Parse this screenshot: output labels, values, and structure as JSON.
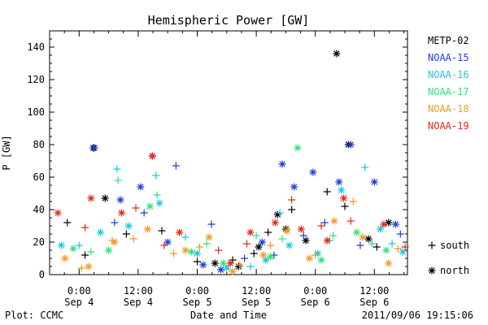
{
  "chart_data": {
    "type": "scatter",
    "title": "Hemispheric Power [GW]",
    "xlabel": "Date and Time",
    "ylabel": "P [GW]",
    "ylim": [
      0,
      150
    ],
    "yticks": [
      0,
      20,
      40,
      60,
      80,
      100,
      120,
      140
    ],
    "xlim": [
      -0.25,
      2.78
    ],
    "xticks": [
      {
        "x": 0.0,
        "time": "0:00",
        "date": "Sep 4"
      },
      {
        "x": 0.5,
        "time": "12:00",
        "date": "Sep 4"
      },
      {
        "x": 1.0,
        "time": "0:00",
        "date": "Sep 5"
      },
      {
        "x": 1.5,
        "time": "12:00",
        "date": "Sep 5"
      },
      {
        "x": 2.0,
        "time": "0:00",
        "date": "Sep 6"
      },
      {
        "x": 2.5,
        "time": "12:00",
        "date": "Sep 6"
      }
    ],
    "x_units": "days after 2011-09-04 00:00",
    "footer_left": "Plot: CCMC",
    "footer_right": "2011/09/06 19:15:06",
    "marker_legend": [
      {
        "symbol": "+",
        "label": "south"
      },
      {
        "symbol": "*",
        "label": "north"
      }
    ],
    "series": [
      {
        "name": "METP-02",
        "color": "#000000",
        "north": [
          [
            0.12,
            78
          ],
          [
            0.22,
            47
          ],
          [
            0.62,
            73
          ],
          [
            1.15,
            7
          ],
          [
            1.35,
            5
          ],
          [
            1.52,
            17
          ],
          [
            1.68,
            37
          ],
          [
            1.75,
            28
          ],
          [
            1.92,
            21
          ],
          [
            2.18,
            136
          ],
          [
            2.28,
            80
          ],
          [
            2.45,
            22
          ],
          [
            2.62,
            32
          ]
        ],
        "south": [
          [
            -0.1,
            32
          ],
          [
            0.05,
            12
          ],
          [
            0.4,
            25
          ],
          [
            0.7,
            27
          ],
          [
            1.0,
            8
          ],
          [
            1.3,
            9
          ],
          [
            1.48,
            13
          ],
          [
            1.6,
            26
          ],
          [
            1.8,
            40
          ],
          [
            2.1,
            51
          ],
          [
            2.25,
            42
          ],
          [
            2.52,
            17
          ]
        ]
      },
      {
        "name": "NOAA-15",
        "color": "#1f3fd1",
        "north": [
          [
            0.13,
            78
          ],
          [
            0.35,
            46
          ],
          [
            0.52,
            54
          ],
          [
            0.75,
            20
          ],
          [
            1.05,
            6
          ],
          [
            1.2,
            3
          ],
          [
            1.55,
            20
          ],
          [
            1.72,
            68
          ],
          [
            1.82,
            54
          ],
          [
            1.98,
            63
          ],
          [
            2.2,
            57
          ],
          [
            2.3,
            80
          ],
          [
            2.5,
            57
          ],
          [
            2.68,
            31
          ]
        ],
        "south": [
          [
            0.3,
            32
          ],
          [
            0.55,
            38
          ],
          [
            0.82,
            67
          ],
          [
            1.12,
            31
          ],
          [
            1.4,
            10
          ],
          [
            1.65,
            12
          ],
          [
            1.9,
            24
          ],
          [
            2.08,
            32
          ],
          [
            2.38,
            18
          ],
          [
            2.72,
            25
          ]
        ]
      },
      {
        "name": "NOAA-16",
        "color": "#1cc7e0",
        "north": [
          [
            -0.15,
            18
          ],
          [
            0.18,
            26
          ],
          [
            0.42,
            30
          ],
          [
            0.68,
            44
          ],
          [
            1.0,
            13
          ],
          [
            1.25,
            4
          ],
          [
            1.58,
            9
          ],
          [
            1.78,
            18
          ],
          [
            2.02,
            13
          ],
          [
            2.22,
            52
          ],
          [
            2.55,
            28
          ],
          [
            2.74,
            14
          ]
        ],
        "south": [
          [
            0.0,
            18
          ],
          [
            0.32,
            65
          ],
          [
            0.65,
            61
          ],
          [
            0.9,
            23
          ],
          [
            1.45,
            5
          ],
          [
            1.7,
            38
          ],
          [
            2.12,
            21
          ],
          [
            2.42,
            66
          ],
          [
            2.65,
            19
          ]
        ]
      },
      {
        "name": "NOAA-17",
        "color": "#33e07a",
        "north": [
          [
            -0.05,
            16
          ],
          [
            0.25,
            15
          ],
          [
            0.6,
            42
          ],
          [
            0.95,
            14
          ],
          [
            1.22,
            7
          ],
          [
            1.62,
            11
          ],
          [
            1.85,
            78
          ],
          [
            2.05,
            9
          ],
          [
            2.35,
            26
          ],
          [
            2.6,
            15
          ]
        ],
        "south": [
          [
            0.1,
            14
          ],
          [
            0.33,
            58
          ],
          [
            0.66,
            49
          ],
          [
            1.08,
            19
          ],
          [
            1.5,
            24
          ],
          [
            1.72,
            22
          ],
          [
            2.15,
            24
          ],
          [
            2.48,
            19
          ]
        ]
      },
      {
        "name": "NOAA-18",
        "color": "#f29a22",
        "north": [
          [
            -0.12,
            10
          ],
          [
            0.08,
            5
          ],
          [
            0.3,
            20
          ],
          [
            0.58,
            28
          ],
          [
            0.9,
            15
          ],
          [
            1.1,
            23
          ],
          [
            1.3,
            2
          ],
          [
            1.56,
            12
          ],
          [
            1.76,
            27
          ],
          [
            1.95,
            10
          ],
          [
            2.16,
            33
          ],
          [
            2.4,
            23
          ],
          [
            2.62,
            7
          ]
        ],
        "south": [
          [
            0.02,
            4
          ],
          [
            0.28,
            21
          ],
          [
            0.46,
            22
          ],
          [
            0.8,
            13
          ],
          [
            1.02,
            17
          ],
          [
            1.36,
            6
          ],
          [
            1.62,
            18
          ],
          [
            2.0,
            12
          ],
          [
            2.32,
            45
          ],
          [
            2.7,
            16
          ]
        ]
      },
      {
        "name": "NOAA-19",
        "color": "#e02a1a",
        "north": [
          [
            -0.18,
            38
          ],
          [
            0.1,
            47
          ],
          [
            0.36,
            38
          ],
          [
            0.62,
            73
          ],
          [
            0.85,
            26
          ],
          [
            1.28,
            7
          ],
          [
            1.45,
            26
          ],
          [
            1.66,
            32
          ],
          [
            1.88,
            28
          ],
          [
            2.1,
            21
          ],
          [
            2.24,
            47
          ],
          [
            2.58,
            31
          ]
        ],
        "south": [
          [
            0.05,
            29
          ],
          [
            0.48,
            41
          ],
          [
            0.72,
            18
          ],
          [
            1.18,
            15
          ],
          [
            1.42,
            19
          ],
          [
            1.8,
            46
          ],
          [
            2.05,
            30
          ],
          [
            2.3,
            33
          ],
          [
            2.76,
            17
          ]
        ]
      }
    ]
  }
}
